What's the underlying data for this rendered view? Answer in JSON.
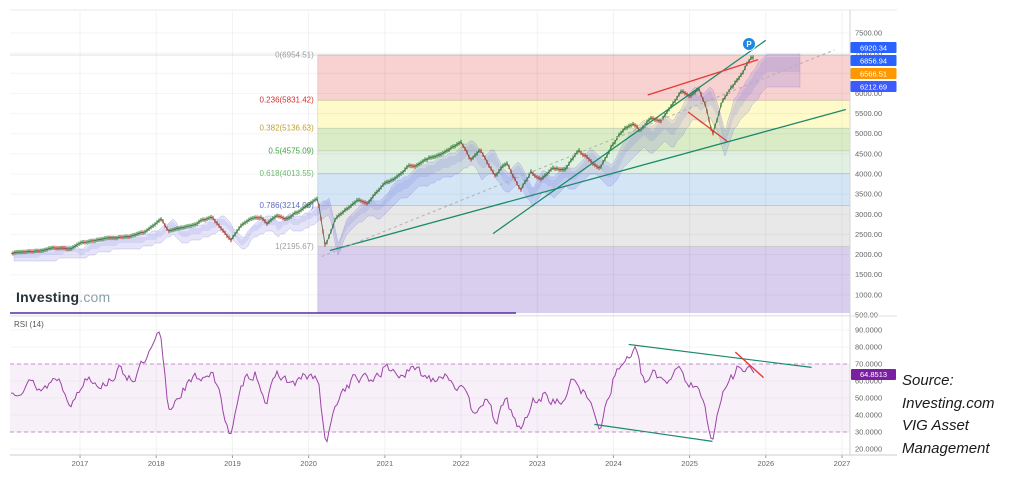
{
  "watermark": {
    "bold": "Investing",
    "light": ".com"
  },
  "rsi_pane": {
    "indicator_label": "RSI (14)",
    "current_value": "64.8513",
    "badge_color": "#7b1fa2",
    "line_color": "#9c43a8",
    "overbought": 70,
    "oversold": 30,
    "axis": [
      {
        "v": 90,
        "label": "90.0000"
      },
      {
        "v": 80,
        "label": "80.0000"
      },
      {
        "v": 70,
        "label": "70.0000"
      },
      {
        "v": 60,
        "label": "60.0000"
      },
      {
        "v": 50,
        "label": "50.0000"
      },
      {
        "v": 40,
        "label": "40.0000"
      },
      {
        "v": 30,
        "label": "30.0000"
      },
      {
        "v": 20,
        "label": "20.0000"
      }
    ]
  },
  "source_note": {
    "lines": [
      "Source:",
      "Investing.com",
      "VIG Asset",
      "Management"
    ]
  },
  "price_axis": [
    {
      "v": 7500,
      "label": "7500.00"
    },
    {
      "v": 7000,
      "label": "7000.00"
    },
    {
      "v": 6500,
      "label": "6500.00"
    },
    {
      "v": 6000,
      "label": "6000.00"
    },
    {
      "v": 5500,
      "label": "5500.00"
    },
    {
      "v": 5000,
      "label": "5000.00"
    },
    {
      "v": 4500,
      "label": "4500.00"
    },
    {
      "v": 4000,
      "label": "4000.00"
    },
    {
      "v": 3500,
      "label": "3500.00"
    },
    {
      "v": 3000,
      "label": "3000.00"
    },
    {
      "v": 2500,
      "label": "2500.00"
    },
    {
      "v": 2000,
      "label": "2000.00"
    },
    {
      "v": 1500,
      "label": "1500.00"
    },
    {
      "v": 1000,
      "label": "1000.00"
    },
    {
      "v": 500,
      "label": "500.00"
    }
  ],
  "price_badges": [
    {
      "label": "6920.34",
      "color": "#2962ff"
    },
    {
      "label": "6856.94",
      "color": "#2962ff"
    },
    {
      "label": "6566.51",
      "color": "#ff9800"
    },
    {
      "label": "6212.69",
      "color": "#3d5afe"
    }
  ],
  "x_axis": [
    {
      "year": 2017,
      "label": "2017"
    },
    {
      "year": 2018,
      "label": "2018"
    },
    {
      "year": 2019,
      "label": "2019"
    },
    {
      "year": 2020,
      "label": "2020"
    },
    {
      "year": 2021,
      "label": "2021"
    },
    {
      "year": 2022,
      "label": "2022"
    },
    {
      "year": 2023,
      "label": "2023"
    },
    {
      "year": 2024,
      "label": "2024"
    },
    {
      "year": 2025,
      "label": "2025"
    },
    {
      "year": 2026,
      "label": "2026"
    },
    {
      "year": 2027,
      "label": "2027"
    }
  ],
  "pro_marker": {
    "letter": "P",
    "color": "#1e88e5"
  },
  "chart_data": {
    "type": "line",
    "x_unit": "year",
    "x_range": [
      2016.08,
      2027.1
    ],
    "price_range": [
      500,
      7500
    ],
    "last_values": [
      6920.34,
      6856.94,
      6566.51,
      6212.69
    ],
    "fib_retracement": {
      "high": 6954.51,
      "low": 2195.67,
      "region_start_year": 2020.12,
      "levels": [
        {
          "ratio": 0,
          "price": 6954.51,
          "label": "0(6954.51)",
          "color": "#9e9e9e"
        },
        {
          "ratio": 0.236,
          "price": 5831.42,
          "label": "0.236(5831.42)",
          "color": "#d32f2f"
        },
        {
          "ratio": 0.382,
          "price": 5136.63,
          "label": "0.382(5136.63)",
          "color": "#c0a02c"
        },
        {
          "ratio": 0.5,
          "price": 4575.09,
          "label": "0.5(4575.09)",
          "color": "#43a047"
        },
        {
          "ratio": 0.618,
          "price": 4013.55,
          "label": "0.618(4013.55)",
          "color": "#66bb6a"
        },
        {
          "ratio": 0.786,
          "price": 3214.06,
          "label": "0.786(3214.06)",
          "color": "#5c6bc0"
        },
        {
          "ratio": 1,
          "price": 2195.67,
          "label": "1(2195.67)",
          "color": "#9e9e9e"
        }
      ],
      "bands": [
        {
          "from": 6954.51,
          "to": 5831.42,
          "fill": "rgba(239,154,154,0.45)"
        },
        {
          "from": 5831.42,
          "to": 5136.63,
          "fill": "rgba(255,245,157,0.55)"
        },
        {
          "from": 5136.63,
          "to": 4575.09,
          "fill": "rgba(174,213,129,0.45)"
        },
        {
          "from": 4575.09,
          "to": 4013.55,
          "fill": "rgba(200,230,201,0.55)"
        },
        {
          "from": 4013.55,
          "to": 3214.06,
          "fill": "rgba(159,197,232,0.45)"
        },
        {
          "from": 3214.06,
          "to": 2195.67,
          "fill": "rgba(189,189,189,0.35)"
        },
        {
          "from": 2195.67,
          "to": 550,
          "fill": "rgba(179,157,219,0.50)"
        }
      ]
    },
    "price_series": {
      "name": "price",
      "points": [
        [
          2016.08,
          2040
        ],
        [
          2016.3,
          2075
        ],
        [
          2016.5,
          2100
        ],
        [
          2016.62,
          2160
        ],
        [
          2016.75,
          2175
        ],
        [
          2016.87,
          2130
        ],
        [
          2017.0,
          2270
        ],
        [
          2017.15,
          2350
        ],
        [
          2017.3,
          2390
        ],
        [
          2017.5,
          2430
        ],
        [
          2017.7,
          2470
        ],
        [
          2017.85,
          2560
        ],
        [
          2017.95,
          2680
        ],
        [
          2018.07,
          2870
        ],
        [
          2018.16,
          2585
        ],
        [
          2018.3,
          2640
        ],
        [
          2018.45,
          2710
        ],
        [
          2018.6,
          2850
        ],
        [
          2018.73,
          2925
        ],
        [
          2018.85,
          2640
        ],
        [
          2018.98,
          2350
        ],
        [
          2019.1,
          2700
        ],
        [
          2019.25,
          2880
        ],
        [
          2019.38,
          2920
        ],
        [
          2019.45,
          2760
        ],
        [
          2019.58,
          2980
        ],
        [
          2019.7,
          2900
        ],
        [
          2019.85,
          3050
        ],
        [
          2020.0,
          3240
        ],
        [
          2020.12,
          3385
        ],
        [
          2020.22,
          2196
        ],
        [
          2020.35,
          2880
        ],
        [
          2020.5,
          3130
        ],
        [
          2020.65,
          3350
        ],
        [
          2020.78,
          3270
        ],
        [
          2020.9,
          3550
        ],
        [
          2021.0,
          3760
        ],
        [
          2021.15,
          3900
        ],
        [
          2021.3,
          4180
        ],
        [
          2021.45,
          4230
        ],
        [
          2021.6,
          4400
        ],
        [
          2021.75,
          4480
        ],
        [
          2021.9,
          4680
        ],
        [
          2022.0,
          4790
        ],
        [
          2022.12,
          4360
        ],
        [
          2022.25,
          4590
        ],
        [
          2022.45,
          3930
        ],
        [
          2022.6,
          4290
        ],
        [
          2022.78,
          3600
        ],
        [
          2022.92,
          4050
        ],
        [
          2023.05,
          3860
        ],
        [
          2023.2,
          4160
        ],
        [
          2023.35,
          4090
        ],
        [
          2023.55,
          4590
        ],
        [
          2023.7,
          4330
        ],
        [
          2023.82,
          4130
        ],
        [
          2024.0,
          4780
        ],
        [
          2024.15,
          5120
        ],
        [
          2024.25,
          5260
        ],
        [
          2024.35,
          5080
        ],
        [
          2024.5,
          5430
        ],
        [
          2024.62,
          5270
        ],
        [
          2024.78,
          5720
        ],
        [
          2024.9,
          6090
        ],
        [
          2025.0,
          5910
        ],
        [
          2025.12,
          6120
        ],
        [
          2025.22,
          5640
        ],
        [
          2025.3,
          4960
        ],
        [
          2025.42,
          5750
        ],
        [
          2025.52,
          6060
        ],
        [
          2025.62,
          6320
        ],
        [
          2025.72,
          6600
        ],
        [
          2025.8,
          6830
        ],
        [
          2025.85,
          6920
        ]
      ]
    },
    "rsi_series": {
      "name": "RSI (14)",
      "current": 64.8513,
      "points": [
        [
          2016.08,
          52
        ],
        [
          2016.3,
          60
        ],
        [
          2016.5,
          55
        ],
        [
          2016.7,
          63
        ],
        [
          2016.9,
          47
        ],
        [
          2017.1,
          64
        ],
        [
          2017.3,
          58
        ],
        [
          2017.5,
          66
        ],
        [
          2017.7,
          62
        ],
        [
          2017.9,
          74
        ],
        [
          2018.05,
          88
        ],
        [
          2018.16,
          42
        ],
        [
          2018.35,
          56
        ],
        [
          2018.55,
          62
        ],
        [
          2018.73,
          66
        ],
        [
          2018.98,
          28
        ],
        [
          2019.15,
          60
        ],
        [
          2019.3,
          66
        ],
        [
          2019.45,
          48
        ],
        [
          2019.6,
          64
        ],
        [
          2019.8,
          58
        ],
        [
          2020.0,
          63
        ],
        [
          2020.13,
          60
        ],
        [
          2020.22,
          21
        ],
        [
          2020.4,
          52
        ],
        [
          2020.6,
          62
        ],
        [
          2020.8,
          60
        ],
        [
          2021.0,
          68
        ],
        [
          2021.2,
          64
        ],
        [
          2021.4,
          66
        ],
        [
          2021.6,
          62
        ],
        [
          2021.8,
          65
        ],
        [
          2022.0,
          55
        ],
        [
          2022.15,
          42
        ],
        [
          2022.3,
          50
        ],
        [
          2022.45,
          36
        ],
        [
          2022.6,
          48
        ],
        [
          2022.78,
          30
        ],
        [
          2022.95,
          48
        ],
        [
          2023.1,
          52
        ],
        [
          2023.3,
          46
        ],
        [
          2023.5,
          62
        ],
        [
          2023.65,
          50
        ],
        [
          2023.82,
          34
        ],
        [
          2024.0,
          62
        ],
        [
          2024.15,
          72
        ],
        [
          2024.28,
          79
        ],
        [
          2024.4,
          58
        ],
        [
          2024.55,
          64
        ],
        [
          2024.7,
          60
        ],
        [
          2024.85,
          70
        ],
        [
          2025.0,
          58
        ],
        [
          2025.15,
          52
        ],
        [
          2025.3,
          27
        ],
        [
          2025.45,
          55
        ],
        [
          2025.55,
          62
        ],
        [
          2025.65,
          68
        ],
        [
          2025.75,
          70
        ],
        [
          2025.85,
          64.85
        ]
      ]
    },
    "trendlines_price": [
      {
        "x1": 2020.28,
        "y1": 2100,
        "x2": 2027.05,
        "y2": 5600,
        "color": "#1b8a6b",
        "width": 1.3,
        "dash": ""
      },
      {
        "x1": 2022.42,
        "y1": 2520,
        "x2": 2026.0,
        "y2": 7320,
        "color": "#1b8a6b",
        "width": 1.3,
        "dash": ""
      },
      {
        "x1": 2020.17,
        "y1": 1950,
        "x2": 2026.9,
        "y2": 7080,
        "color": "#b0b0b0",
        "width": 1,
        "dash": "3,3"
      },
      {
        "x1": 2024.45,
        "y1": 5960,
        "x2": 2025.9,
        "y2": 6840,
        "color": "#e53935",
        "width": 1.3,
        "dash": ""
      },
      {
        "x1": 2024.98,
        "y1": 5540,
        "x2": 2025.5,
        "y2": 4800,
        "color": "#e53935",
        "width": 1.3,
        "dash": ""
      }
    ],
    "trendlines_rsi": [
      {
        "x1": 2024.2,
        "y1": 81.5,
        "x2": 2026.6,
        "y2": 68.0,
        "color": "#1b8a6b",
        "width": 1.2,
        "dash": ""
      },
      {
        "x1": 2023.75,
        "y1": 34.5,
        "x2": 2025.3,
        "y2": 24.5,
        "color": "#1b8a6b",
        "width": 1.2,
        "dash": ""
      },
      {
        "x1": 2025.6,
        "y1": 77.0,
        "x2": 2025.97,
        "y2": 62.0,
        "color": "#e53935",
        "width": 1.4,
        "dash": ""
      }
    ]
  }
}
